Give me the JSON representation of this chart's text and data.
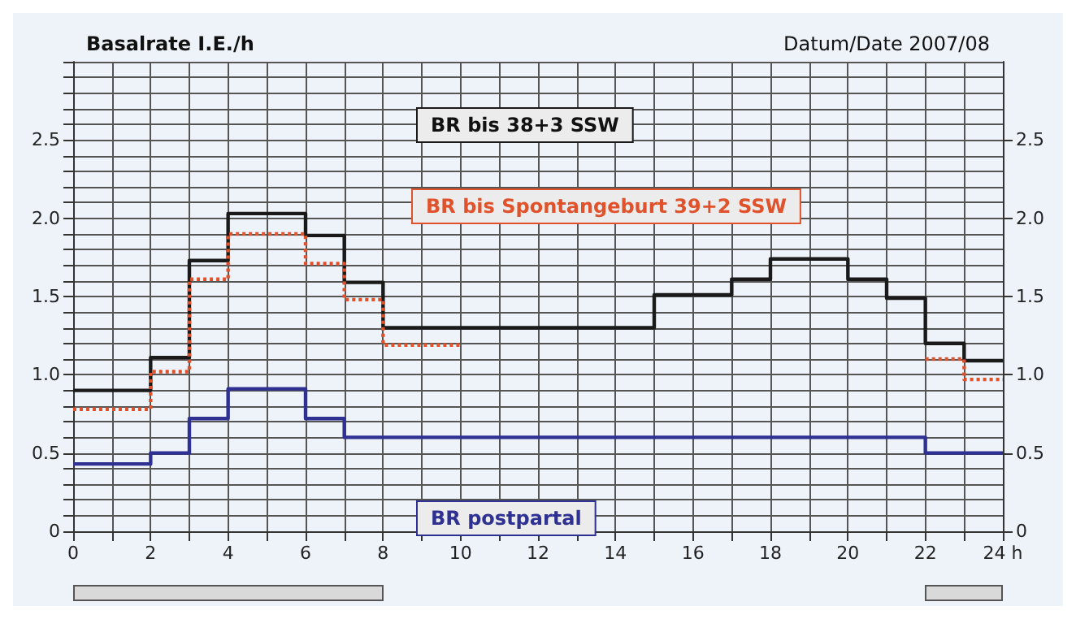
{
  "chart_data": {
    "type": "step",
    "title": "Basalrate I.E./h",
    "subtitle": "Datum/Date 2007/08",
    "xlim": [
      0,
      24
    ],
    "xticks": [
      0,
      {
        "value": 1,
        "label": null
      },
      2,
      {
        "value": 3,
        "label": null
      },
      4,
      {
        "value": 5,
        "label": null
      },
      6,
      {
        "value": 7,
        "label": null
      },
      8,
      {
        "value": 9,
        "label": null
      },
      10,
      {
        "value": 11,
        "label": null
      },
      12,
      {
        "value": 13,
        "label": null
      },
      14,
      {
        "value": 15,
        "label": null
      },
      16,
      {
        "value": 17,
        "label": null
      },
      18,
      {
        "value": 19,
        "label": null
      },
      20,
      {
        "value": 21,
        "label": null
      },
      22,
      {
        "value": 23,
        "label": null
      },
      {
        "value": 24,
        "label": "24 h"
      }
    ],
    "ylim": [
      0,
      3
    ],
    "yticks": [
      0,
      {
        "value": 0.1,
        "label": null
      },
      {
        "value": 0.2,
        "label": null
      },
      {
        "value": 0.3,
        "label": null
      },
      {
        "value": 0.4,
        "label": null
      },
      0.5,
      {
        "value": 0.6,
        "label": null
      },
      {
        "value": 0.7,
        "label": null
      },
      {
        "value": 0.8,
        "label": null
      },
      {
        "value": 0.9,
        "label": null
      },
      {
        "value": 1,
        "label": "1.0"
      },
      {
        "value": 1.1,
        "label": null
      },
      {
        "value": 1.2,
        "label": null
      },
      {
        "value": 1.3,
        "label": null
      },
      {
        "value": 1.4,
        "label": null
      },
      1.5,
      {
        "value": 1.6,
        "label": null
      },
      {
        "value": 1.7,
        "label": null
      },
      {
        "value": 1.8,
        "label": null
      },
      {
        "value": 1.9,
        "label": null
      },
      {
        "value": 2,
        "label": "2.0"
      },
      {
        "value": 2.1,
        "label": null
      },
      {
        "value": 2.2,
        "label": null
      },
      {
        "value": 2.3,
        "label": null
      },
      {
        "value": 2.4,
        "label": null
      },
      2.5,
      {
        "value": 2.6,
        "label": null
      },
      {
        "value": 2.7,
        "label": null
      },
      {
        "value": 2.8,
        "label": null
      },
      {
        "value": 2.9,
        "label": null
      },
      {
        "value": 3,
        "label": null
      }
    ],
    "y2lim": [
      0,
      3
    ],
    "y2ticks": [
      0,
      0.5,
      {
        "value": 1,
        "label": "1.0"
      },
      1.5,
      {
        "value": 2,
        "label": "2.0"
      },
      2.5
    ],
    "grid": true,
    "legend": false,
    "marker": "none",
    "series": [
      {
        "name": "BR bis 38+3 SSW",
        "color": "#1a1a1a",
        "line_style": "solid",
        "x": [
          0,
          2,
          3,
          4,
          6,
          7,
          8,
          15,
          17,
          18,
          20,
          21,
          22,
          23,
          24
        ],
        "values": [
          0.9,
          1.11,
          1.73,
          2.03,
          1.89,
          1.59,
          1.3,
          1.51,
          1.61,
          1.74,
          1.61,
          1.49,
          1.2,
          1.09,
          1.09
        ]
      },
      {
        "name": "BR bis Spontangeburt 39+2 SSW",
        "color": "#e0522b",
        "line_style": "dotted",
        "x": [
          0,
          2,
          3,
          4,
          6,
          7,
          8,
          10
        ],
        "values": [
          0.78,
          1.02,
          1.61,
          1.9,
          1.71,
          1.48,
          1.19,
          1.19
        ]
      },
      {
        "color": "#e0522b",
        "line_style": "dotted",
        "x": [
          22,
          23,
          24
        ],
        "values": [
          1.1,
          0.97,
          0.97
        ]
      },
      {
        "name": "BR postpartal",
        "color": "#2e3192",
        "line_style": "solid",
        "x": [
          0,
          2,
          3,
          4,
          6,
          7,
          22,
          24
        ],
        "values": [
          0.43,
          0.5,
          0.72,
          0.91,
          0.72,
          0.6,
          0.5,
          0.5
        ]
      }
    ]
  }
}
